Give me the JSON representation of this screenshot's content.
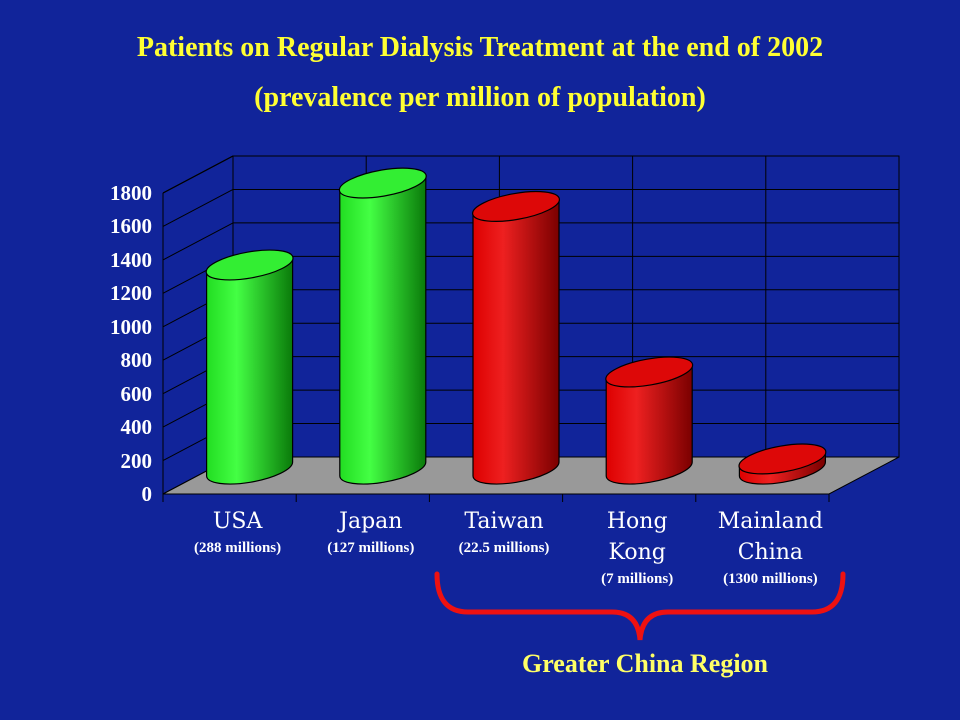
{
  "title_line1": "Patients on Regular Dialysis Treatment at the end of 2002",
  "title_line2": "(prevalence per million of population)",
  "region_label": "Greater China Region",
  "colors": {
    "background": "#11249a",
    "title": "#ffff33",
    "green_bar": "#22ee22",
    "red_bar": "#dd0000",
    "floor": "#999999",
    "brace": "#ee1111"
  },
  "chart_data": {
    "type": "bar",
    "title": "Patients on Regular Dialysis Treatment at the end of 2002",
    "subtitle": "(prevalence per million of population)",
    "categories": [
      "USA",
      "Japan",
      "Taiwan",
      "Hong Kong",
      "Mainland China"
    ],
    "category_lines": [
      [
        "USA"
      ],
      [
        "Japan"
      ],
      [
        "Taiwan"
      ],
      [
        "Hong",
        "Kong"
      ],
      [
        "Mainland",
        "China"
      ]
    ],
    "populations": [
      "(288 millions)",
      "(127 millions)",
      "(22.5 millions)",
      "(7  millions)",
      "(1300 millions)"
    ],
    "values": [
      1220,
      1710,
      1570,
      580,
      60
    ],
    "bar_colors": [
      "green",
      "green",
      "red",
      "red",
      "red"
    ],
    "ylim": [
      0,
      1800
    ],
    "yticks": [
      "0",
      "200",
      "400",
      "600",
      "800",
      "1000",
      "1200",
      "1400",
      "1600",
      "1800"
    ],
    "ytick_values": [
      0,
      200,
      400,
      600,
      800,
      1000,
      1200,
      1400,
      1600,
      1800
    ],
    "grid": true,
    "annotation": "Greater China Region"
  }
}
